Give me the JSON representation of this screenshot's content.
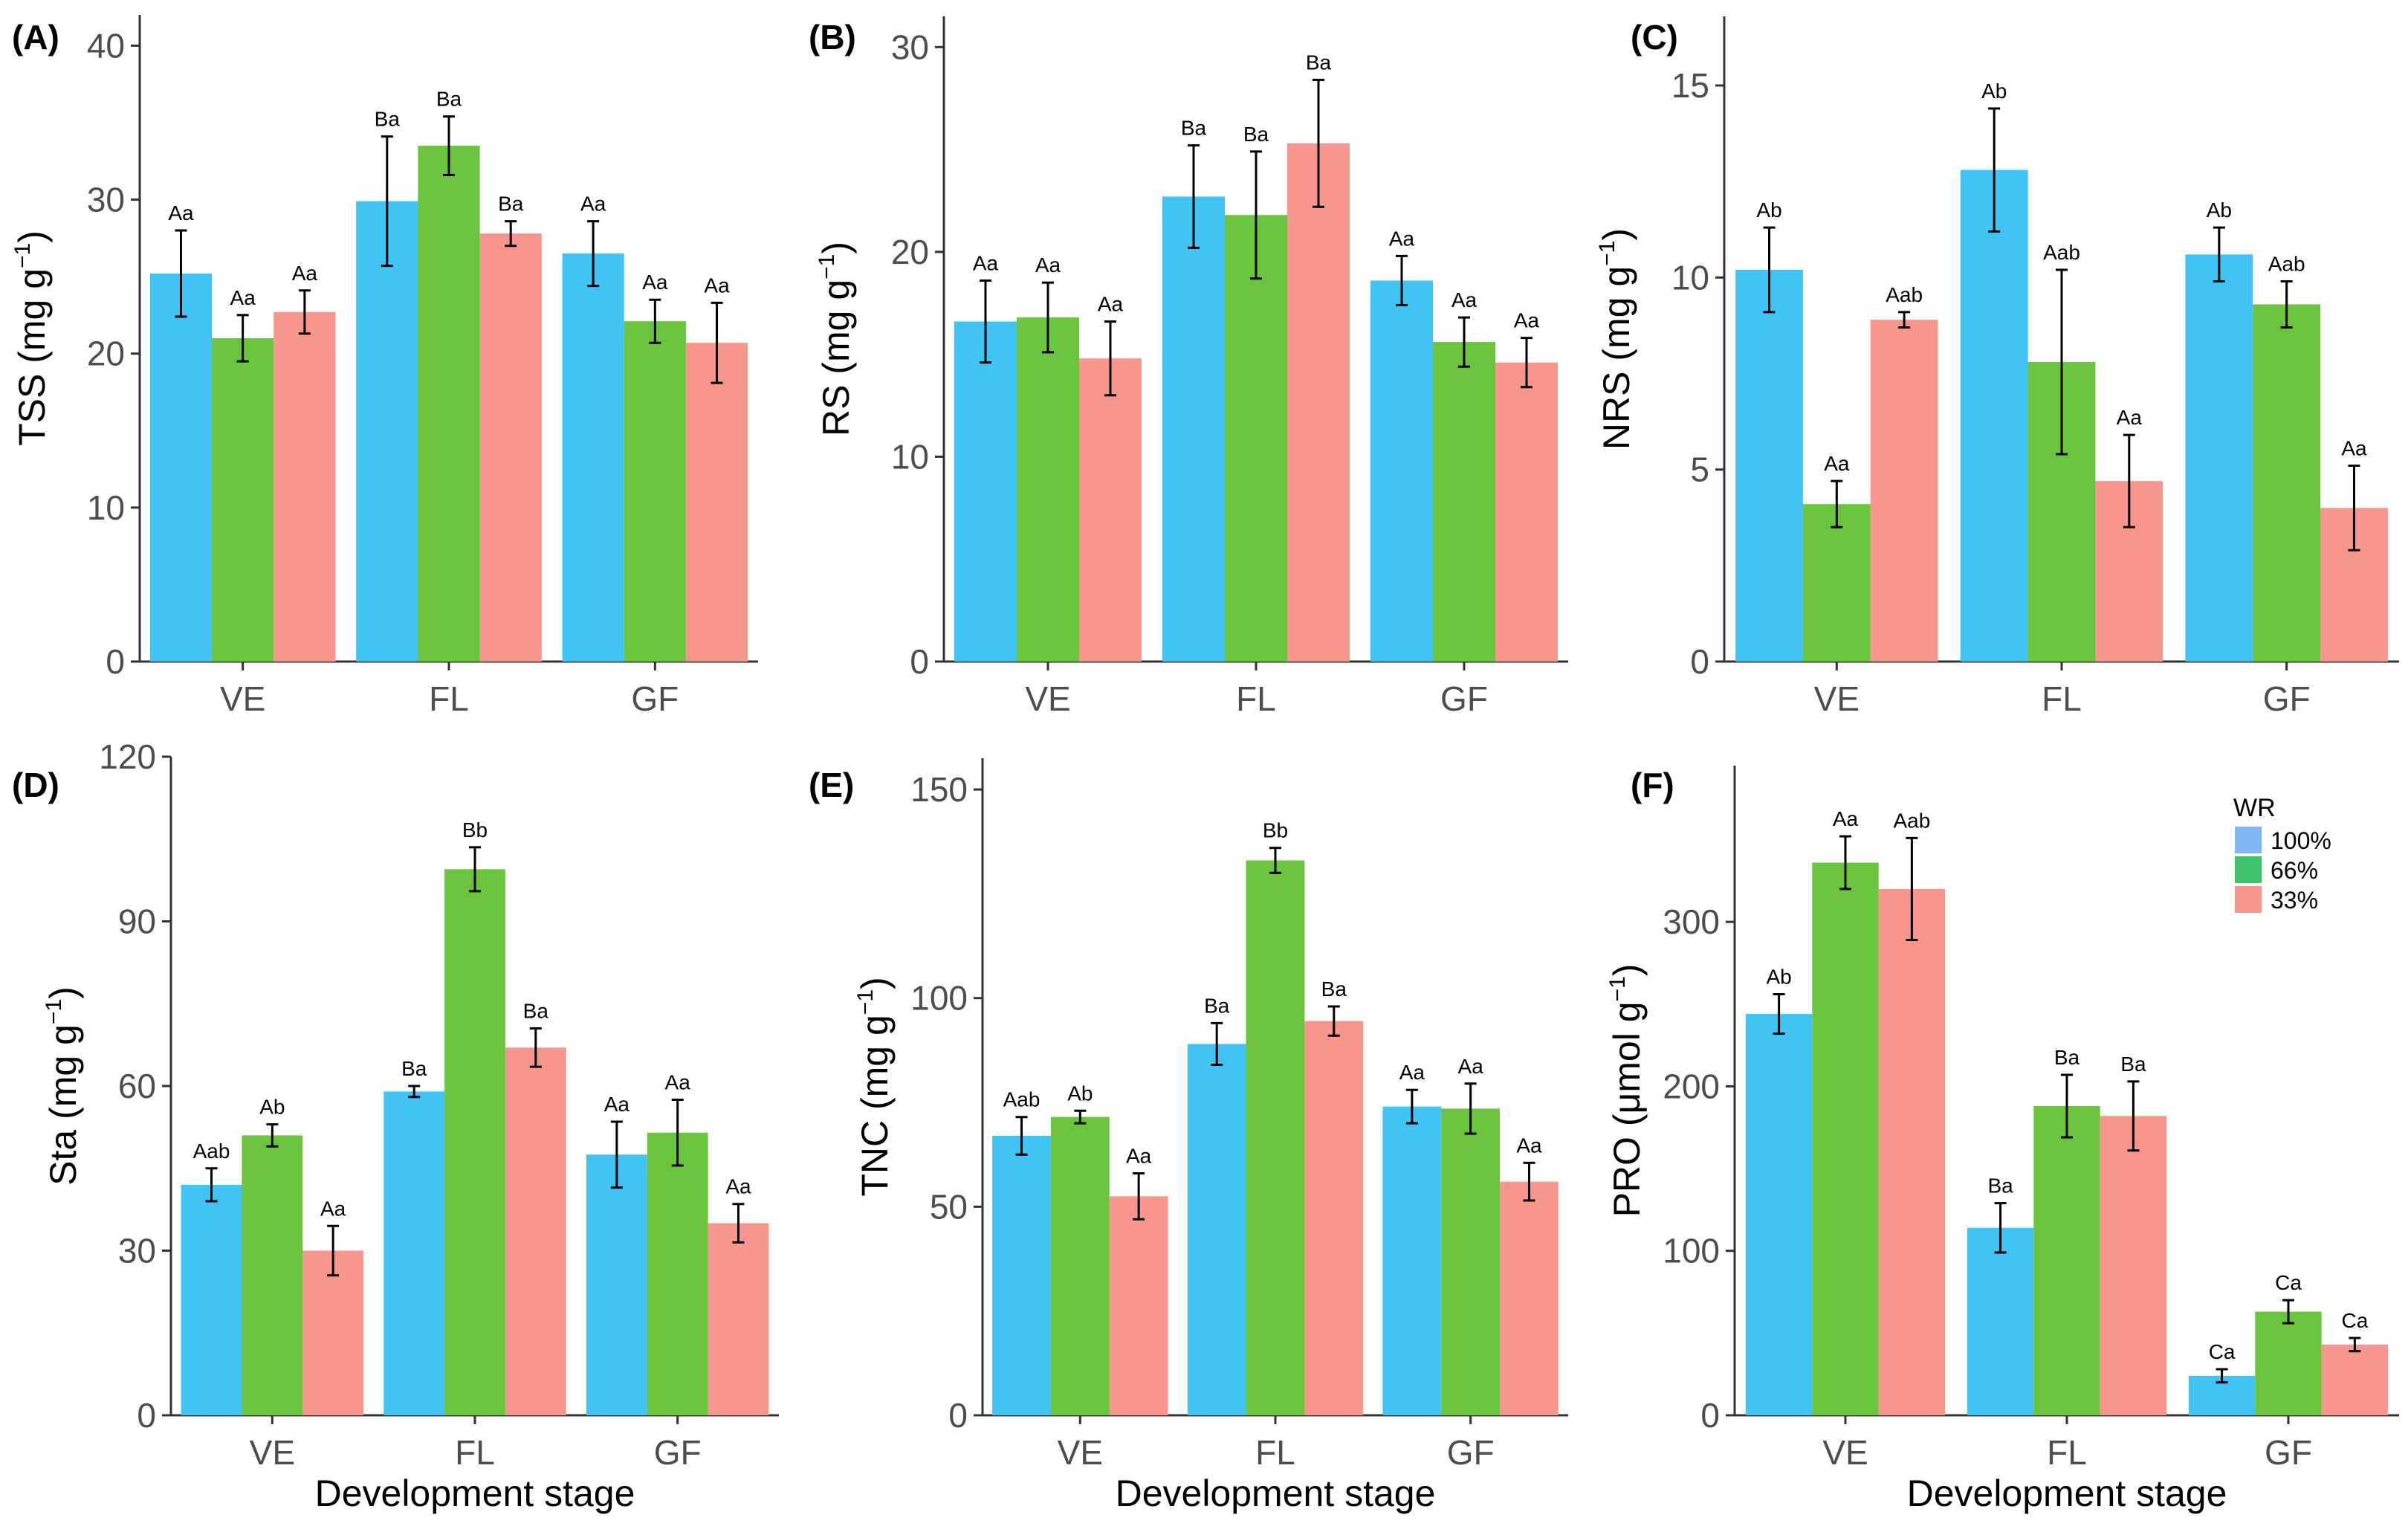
{
  "colors": {
    "100%": "#41c3f4",
    "66%": "#6bc43d",
    "33%": "#f6968c",
    "axis": "#333333"
  },
  "legend": {
    "title": "WR",
    "items": [
      {
        "label": "100%",
        "color": "#7fb7f5"
      },
      {
        "label": "66%",
        "color": "#3fc46e"
      },
      {
        "label": "33%",
        "color": "#f6968c"
      }
    ]
  },
  "chart_data": [
    {
      "panel": "(A)",
      "type": "bar",
      "categories": [
        "VE",
        "FL",
        "GF"
      ],
      "xlabel": "",
      "ylabel": "TSS (mg g",
      "ylabel_sup": "−1",
      "ylabel_end": ")",
      "ylim": [
        0,
        42
      ],
      "yticks": [
        0,
        10,
        20,
        30,
        40
      ],
      "series": [
        {
          "name": "100%",
          "values": [
            25.2,
            29.9,
            26.5
          ],
          "errors": [
            2.8,
            4.2,
            2.1
          ],
          "labels": [
            "Aa",
            "Ba",
            "Aa"
          ]
        },
        {
          "name": "66%",
          "values": [
            21.0,
            33.5,
            22.1
          ],
          "errors": [
            1.5,
            1.9,
            1.4
          ],
          "labels": [
            "Aa",
            "Ba",
            "Aa"
          ]
        },
        {
          "name": "33%",
          "values": [
            22.7,
            27.8,
            20.7
          ],
          "errors": [
            1.4,
            0.8,
            2.6
          ],
          "labels": [
            "Aa",
            "Ba",
            "Aa"
          ]
        }
      ]
    },
    {
      "panel": "(B)",
      "type": "bar",
      "categories": [
        "VE",
        "FL",
        "GF"
      ],
      "xlabel": "",
      "ylabel": "RS (mg g",
      "ylabel_sup": "−1",
      "ylabel_end": ")",
      "ylim": [
        0,
        31.5
      ],
      "yticks": [
        0,
        10,
        20,
        30
      ],
      "series": [
        {
          "name": "100%",
          "values": [
            16.6,
            22.7,
            18.6
          ],
          "errors": [
            2.0,
            2.5,
            1.2
          ],
          "labels": [
            "Aa",
            "Ba",
            "Aa"
          ]
        },
        {
          "name": "66%",
          "values": [
            16.8,
            21.8,
            15.6
          ],
          "errors": [
            1.7,
            3.1,
            1.2
          ],
          "labels": [
            "Aa",
            "Ba",
            "Aa"
          ]
        },
        {
          "name": "33%",
          "values": [
            14.8,
            25.3,
            14.6
          ],
          "errors": [
            1.8,
            3.1,
            1.2
          ],
          "labels": [
            "Aa",
            "Ba",
            "Aa"
          ]
        }
      ]
    },
    {
      "panel": "(C)",
      "type": "bar",
      "categories": [
        "VE",
        "FL",
        "GF"
      ],
      "xlabel": "",
      "ylabel": "NRS (mg g",
      "ylabel_sup": "−1",
      "ylabel_end": ")",
      "ylim": [
        0,
        16.8
      ],
      "yticks": [
        0,
        5,
        10,
        15
      ],
      "series": [
        {
          "name": "100%",
          "values": [
            10.2,
            12.8,
            10.6
          ],
          "errors": [
            1.1,
            1.6,
            0.7
          ],
          "labels": [
            "Ab",
            "Ab",
            "Ab"
          ]
        },
        {
          "name": "66%",
          "values": [
            4.1,
            7.8,
            9.3
          ],
          "errors": [
            0.6,
            2.4,
            0.6
          ],
          "labels": [
            "Aa",
            "Aab",
            "Aab"
          ]
        },
        {
          "name": "33%",
          "values": [
            8.9,
            4.7,
            4.0
          ],
          "errors": [
            0.2,
            1.2,
            1.1
          ],
          "labels": [
            "Aab",
            "Aa",
            "Aa"
          ]
        }
      ]
    },
    {
      "panel": "(D)",
      "type": "bar",
      "categories": [
        "VE",
        "FL",
        "GF"
      ],
      "xlabel": "Development stage",
      "ylabel": "Sta (mg g",
      "ylabel_sup": "−1",
      "ylabel_end": ")",
      "ylim": [
        0,
        120
      ],
      "yticks": [
        0,
        30,
        60,
        90,
        120
      ],
      "series": [
        {
          "name": "100%",
          "values": [
            42.0,
            59.0,
            47.5
          ],
          "errors": [
            3.0,
            1.0,
            6.0
          ],
          "labels": [
            "Aab",
            "Ba",
            "Aa"
          ]
        },
        {
          "name": "66%",
          "values": [
            51.0,
            99.5,
            51.5
          ],
          "errors": [
            2.0,
            4.0,
            6.0
          ],
          "labels": [
            "Ab",
            "Bb",
            "Aa"
          ]
        },
        {
          "name": "33%",
          "values": [
            30.0,
            67.0,
            35.0
          ],
          "errors": [
            4.5,
            3.5,
            3.5
          ],
          "labels": [
            "Aa",
            "Ba",
            "Aa"
          ]
        }
      ]
    },
    {
      "panel": "(E)",
      "type": "bar",
      "categories": [
        "VE",
        "FL",
        "GF"
      ],
      "xlabel": "Development stage",
      "ylabel": "TNC (mg g",
      "ylabel_sup": "−1",
      "ylabel_end": ")",
      "ylim": [
        0,
        157.5
      ],
      "yticks": [
        0,
        50,
        100,
        150
      ],
      "series": [
        {
          "name": "100%",
          "values": [
            67.0,
            89.0,
            74.0
          ],
          "errors": [
            4.5,
            5.0,
            4.0
          ],
          "labels": [
            "Aab",
            "Ba",
            "Aa"
          ]
        },
        {
          "name": "66%",
          "values": [
            71.5,
            133.0,
            73.5
          ],
          "errors": [
            1.5,
            3.0,
            6.0
          ],
          "labels": [
            "Ab",
            "Bb",
            "Aa"
          ]
        },
        {
          "name": "33%",
          "values": [
            52.5,
            94.5,
            56.0
          ],
          "errors": [
            5.5,
            3.5,
            4.5
          ],
          "labels": [
            "Aa",
            "Ba",
            "Aa"
          ]
        }
      ]
    },
    {
      "panel": "(F)",
      "type": "bar",
      "categories": [
        "VE",
        "FL",
        "GF"
      ],
      "xlabel": "Development stage",
      "ylabel": "PRO (μmol g",
      "ylabel_sup": "−1",
      "ylabel_end": ")",
      "ylim": [
        0,
        395
      ],
      "yticks": [
        0,
        100,
        200,
        300
      ],
      "series": [
        {
          "name": "100%",
          "values": [
            244,
            114,
            24
          ],
          "errors": [
            12,
            15,
            4
          ],
          "labels": [
            "Ab",
            "Ba",
            "Ca"
          ]
        },
        {
          "name": "66%",
          "values": [
            336,
            188,
            63
          ],
          "errors": [
            16,
            19,
            7
          ],
          "labels": [
            "Aa",
            "Ba",
            "Ca"
          ]
        },
        {
          "name": "33%",
          "values": [
            320,
            182,
            43
          ],
          "errors": [
            31,
            21,
            4
          ],
          "labels": [
            "Aab",
            "Ba",
            "Ca"
          ]
        }
      ]
    }
  ]
}
